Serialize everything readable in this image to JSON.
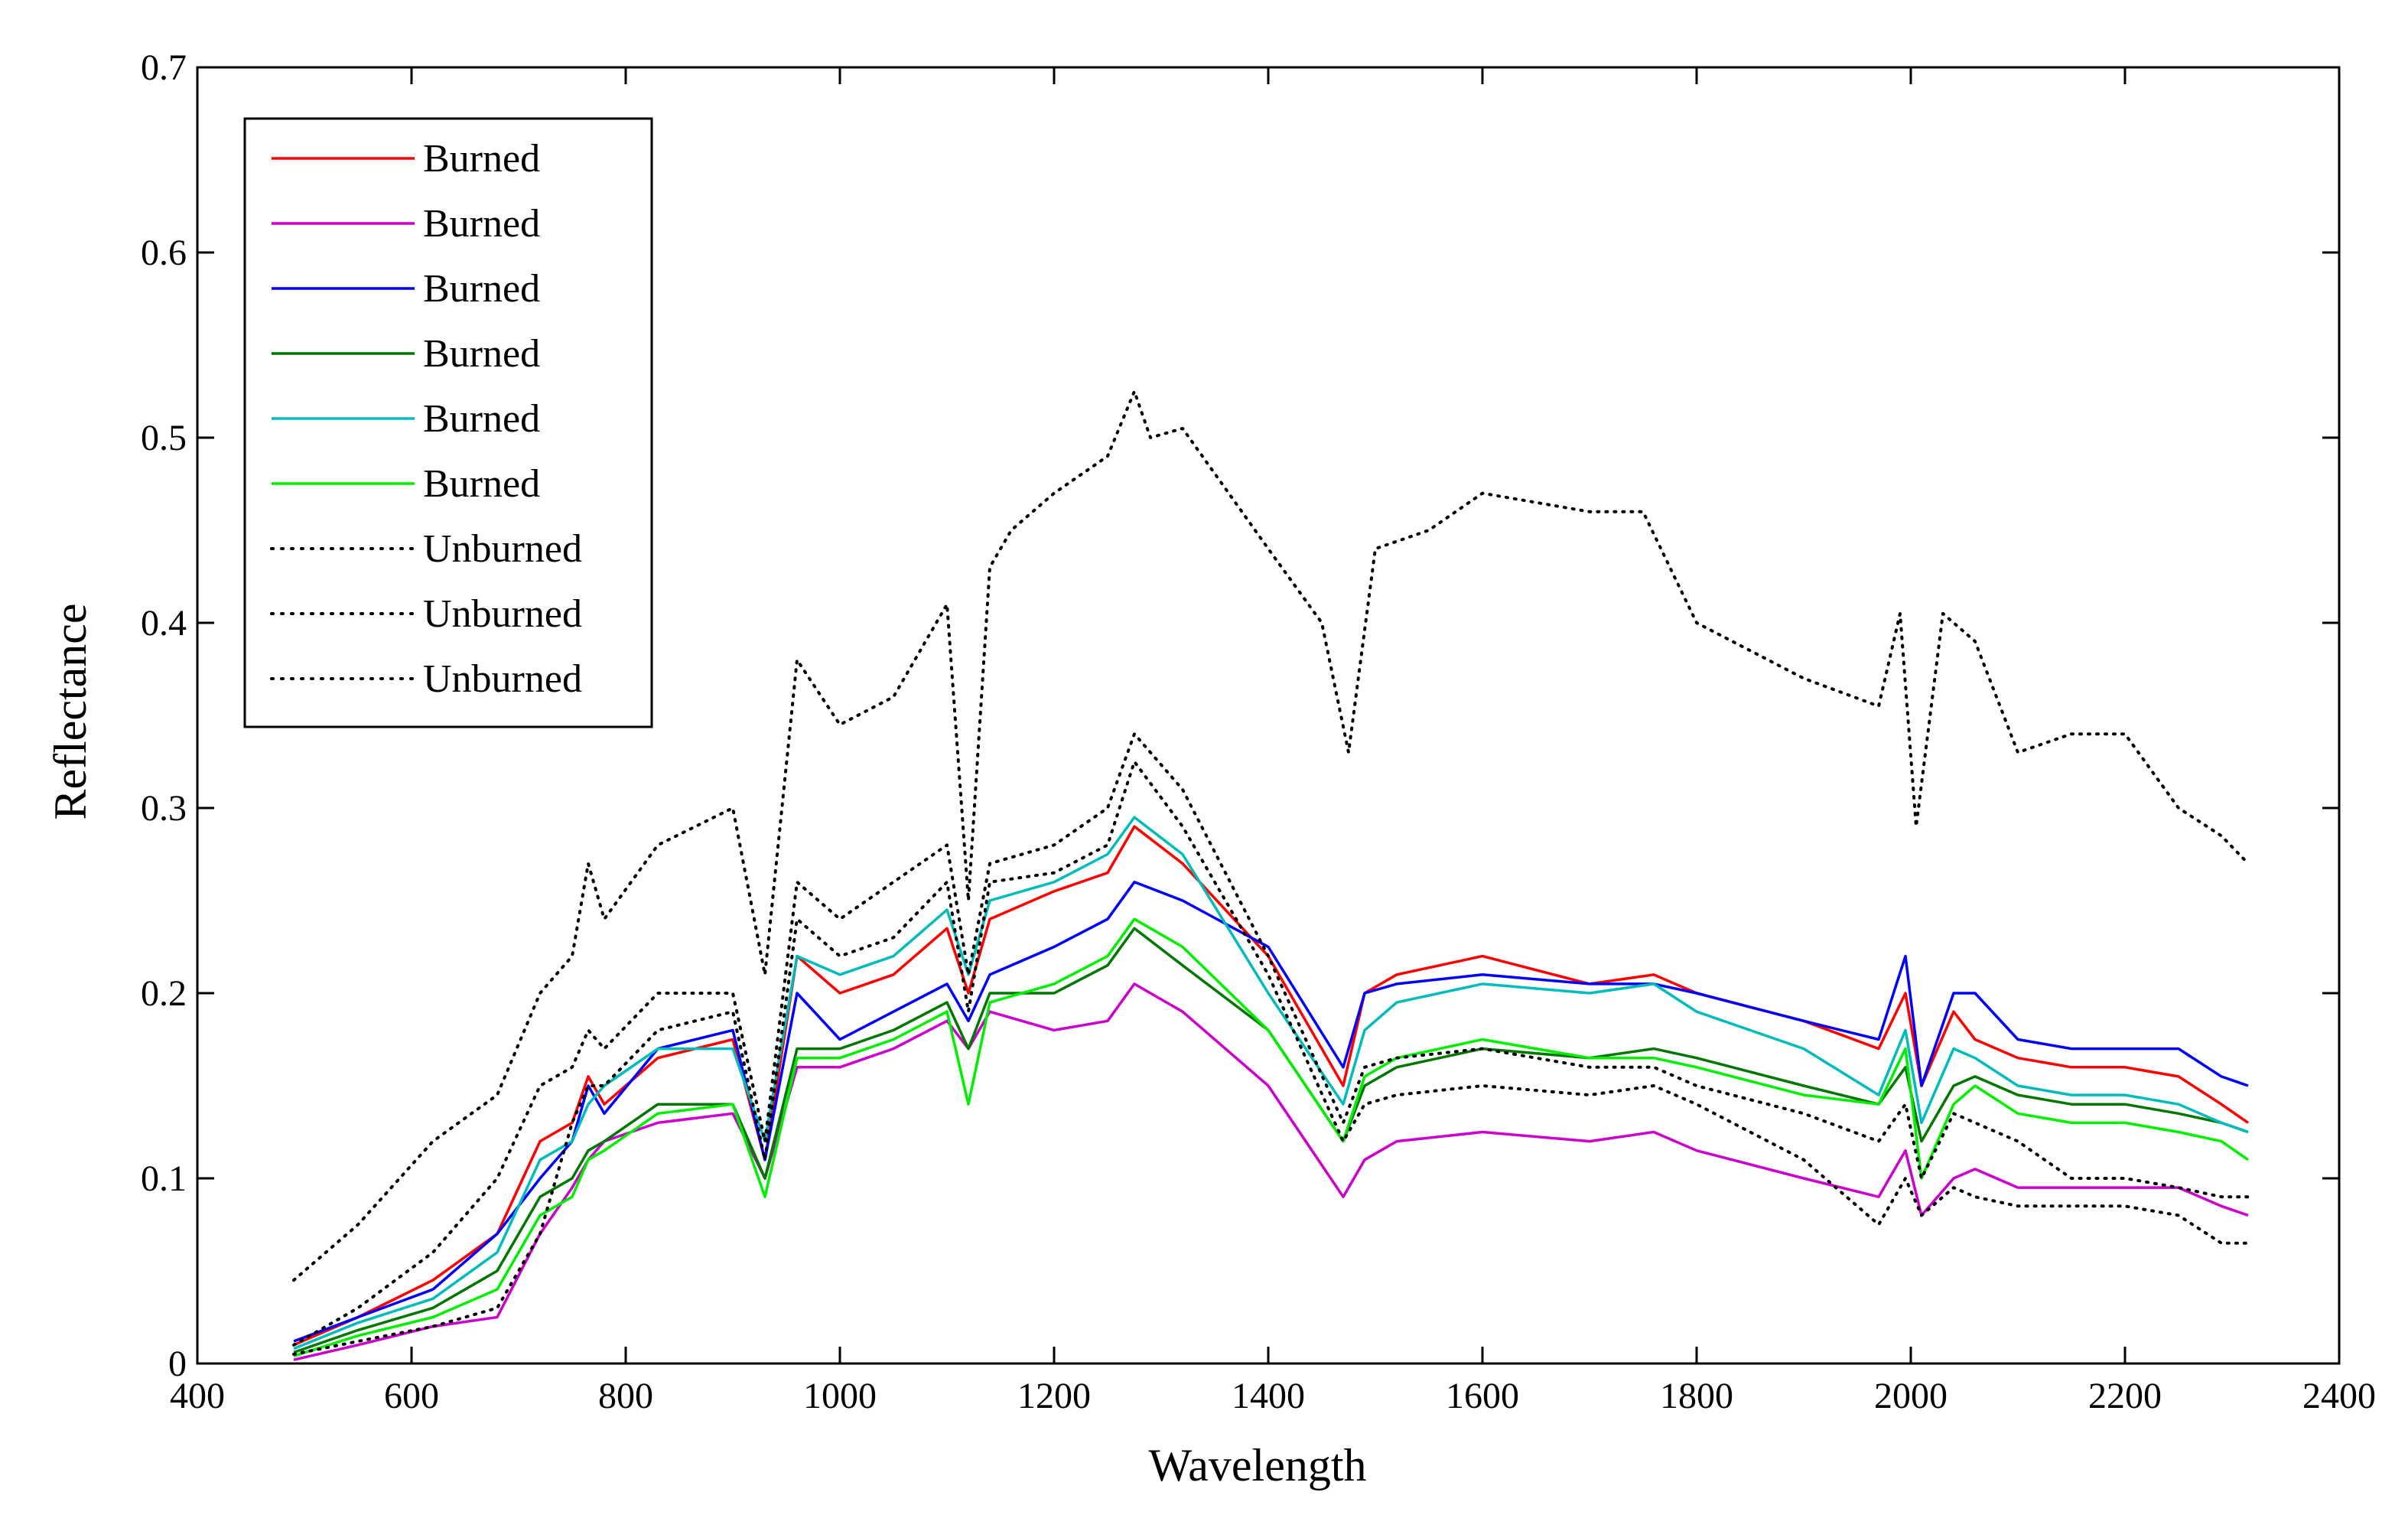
{
  "chart_data": {
    "type": "line",
    "title": "",
    "xlabel": "Wavelength",
    "ylabel": "Reflectance",
    "xlim": [
      400,
      2400
    ],
    "ylim": [
      0,
      0.7
    ],
    "grid": false,
    "legend_position": "top-left",
    "x_ticks": [
      "400",
      "600",
      "800",
      "1000",
      "1200",
      "1400",
      "1600",
      "1800",
      "2000",
      "2200",
      "2400"
    ],
    "y_ticks": [
      "0",
      "0.1",
      "0.2",
      "0.3",
      "0.4",
      "0.5",
      "0.6",
      "0.7"
    ],
    "series": [
      {
        "name": "Burned",
        "color": "#ff0000",
        "style": "solid",
        "x": [
          490,
          550,
          620,
          680,
          720,
          750,
          765,
          780,
          830,
          900,
          930,
          960,
          1000,
          1050,
          1100,
          1120,
          1140,
          1200,
          1250,
          1275,
          1320,
          1400,
          1470,
          1490,
          1520,
          1600,
          1700,
          1760,
          1800,
          1900,
          1970,
          1995,
          2010,
          2040,
          2060,
          2100,
          2150,
          2200,
          2250,
          2290,
          2315
        ],
        "y": [
          0.01,
          0.025,
          0.045,
          0.07,
          0.12,
          0.13,
          0.155,
          0.14,
          0.165,
          0.175,
          0.11,
          0.22,
          0.2,
          0.21,
          0.235,
          0.2,
          0.24,
          0.255,
          0.265,
          0.29,
          0.27,
          0.22,
          0.15,
          0.2,
          0.21,
          0.22,
          0.205,
          0.21,
          0.2,
          0.185,
          0.17,
          0.2,
          0.15,
          0.19,
          0.175,
          0.165,
          0.16,
          0.16,
          0.155,
          0.14,
          0.13
        ]
      },
      {
        "name": "Burned",
        "color": "#cc00cc",
        "style": "solid",
        "x": [
          490,
          550,
          620,
          680,
          720,
          750,
          765,
          780,
          830,
          900,
          930,
          960,
          1000,
          1050,
          1100,
          1120,
          1140,
          1200,
          1250,
          1275,
          1320,
          1400,
          1470,
          1490,
          1520,
          1600,
          1700,
          1760,
          1800,
          1900,
          1970,
          1995,
          2010,
          2040,
          2060,
          2100,
          2150,
          2200,
          2250,
          2290,
          2315
        ],
        "y": [
          0.002,
          0.01,
          0.02,
          0.025,
          0.07,
          0.095,
          0.11,
          0.12,
          0.13,
          0.135,
          0.1,
          0.16,
          0.16,
          0.17,
          0.185,
          0.17,
          0.19,
          0.18,
          0.185,
          0.205,
          0.19,
          0.15,
          0.09,
          0.11,
          0.12,
          0.125,
          0.12,
          0.125,
          0.115,
          0.1,
          0.09,
          0.115,
          0.08,
          0.1,
          0.105,
          0.095,
          0.095,
          0.095,
          0.095,
          0.085,
          0.08
        ]
      },
      {
        "name": "Burned",
        "color": "#0000ff",
        "style": "solid",
        "x": [
          490,
          550,
          620,
          680,
          720,
          750,
          765,
          780,
          830,
          900,
          930,
          960,
          1000,
          1050,
          1100,
          1120,
          1140,
          1200,
          1250,
          1275,
          1320,
          1400,
          1470,
          1490,
          1520,
          1600,
          1700,
          1760,
          1800,
          1900,
          1970,
          1995,
          2010,
          2040,
          2060,
          2100,
          2150,
          2200,
          2250,
          2290,
          2315
        ],
        "y": [
          0.012,
          0.025,
          0.04,
          0.07,
          0.1,
          0.12,
          0.15,
          0.135,
          0.17,
          0.18,
          0.11,
          0.2,
          0.175,
          0.19,
          0.205,
          0.185,
          0.21,
          0.225,
          0.24,
          0.26,
          0.25,
          0.225,
          0.16,
          0.2,
          0.205,
          0.21,
          0.205,
          0.205,
          0.2,
          0.185,
          0.175,
          0.22,
          0.15,
          0.2,
          0.2,
          0.175,
          0.17,
          0.17,
          0.17,
          0.155,
          0.15
        ]
      },
      {
        "name": "Burned",
        "color": "#007700",
        "style": "solid",
        "x": [
          490,
          550,
          620,
          680,
          720,
          750,
          765,
          780,
          830,
          900,
          930,
          960,
          1000,
          1050,
          1100,
          1120,
          1140,
          1200,
          1250,
          1275,
          1320,
          1400,
          1470,
          1490,
          1520,
          1600,
          1700,
          1760,
          1800,
          1900,
          1970,
          1995,
          2010,
          2040,
          2060,
          2100,
          2150,
          2200,
          2250,
          2290,
          2315
        ],
        "y": [
          0.006,
          0.018,
          0.03,
          0.05,
          0.09,
          0.1,
          0.115,
          0.12,
          0.14,
          0.14,
          0.1,
          0.17,
          0.17,
          0.18,
          0.195,
          0.17,
          0.2,
          0.2,
          0.215,
          0.235,
          0.215,
          0.18,
          0.12,
          0.15,
          0.16,
          0.17,
          0.165,
          0.17,
          0.165,
          0.15,
          0.14,
          0.16,
          0.12,
          0.15,
          0.155,
          0.145,
          0.14,
          0.14,
          0.135,
          0.13,
          0.125
        ]
      },
      {
        "name": "Burned",
        "color": "#00bbbb",
        "style": "solid",
        "x": [
          490,
          550,
          620,
          680,
          720,
          750,
          765,
          780,
          830,
          900,
          930,
          960,
          1000,
          1050,
          1100,
          1120,
          1140,
          1200,
          1250,
          1275,
          1320,
          1400,
          1470,
          1490,
          1520,
          1600,
          1700,
          1760,
          1800,
          1900,
          1970,
          1995,
          2010,
          2040,
          2060,
          2100,
          2150,
          2200,
          2250,
          2290,
          2315
        ],
        "y": [
          0.008,
          0.022,
          0.035,
          0.06,
          0.11,
          0.12,
          0.14,
          0.15,
          0.17,
          0.17,
          0.12,
          0.22,
          0.21,
          0.22,
          0.245,
          0.21,
          0.25,
          0.26,
          0.275,
          0.295,
          0.275,
          0.2,
          0.14,
          0.18,
          0.195,
          0.205,
          0.2,
          0.205,
          0.19,
          0.17,
          0.145,
          0.18,
          0.13,
          0.17,
          0.165,
          0.15,
          0.145,
          0.145,
          0.14,
          0.13,
          0.125
        ]
      },
      {
        "name": "Burned",
        "color": "#00ee00",
        "style": "solid",
        "x": [
          490,
          550,
          620,
          680,
          720,
          750,
          765,
          780,
          830,
          900,
          930,
          960,
          1000,
          1050,
          1100,
          1120,
          1140,
          1200,
          1250,
          1275,
          1320,
          1400,
          1470,
          1490,
          1520,
          1600,
          1700,
          1760,
          1800,
          1900,
          1970,
          1995,
          2010,
          2040,
          2060,
          2100,
          2150,
          2200,
          2250,
          2290,
          2315
        ],
        "y": [
          0.004,
          0.015,
          0.025,
          0.04,
          0.08,
          0.09,
          0.11,
          0.115,
          0.135,
          0.14,
          0.09,
          0.165,
          0.165,
          0.175,
          0.19,
          0.14,
          0.195,
          0.205,
          0.22,
          0.24,
          0.225,
          0.18,
          0.12,
          0.155,
          0.165,
          0.175,
          0.165,
          0.165,
          0.16,
          0.145,
          0.14,
          0.17,
          0.1,
          0.14,
          0.15,
          0.135,
          0.13,
          0.13,
          0.125,
          0.12,
          0.11
        ]
      },
      {
        "name": "Unburned",
        "color": "#000000",
        "style": "dotted",
        "x": [
          490,
          550,
          620,
          680,
          720,
          750,
          765,
          780,
          830,
          900,
          930,
          960,
          1000,
          1050,
          1100,
          1120,
          1140,
          1160,
          1200,
          1250,
          1275,
          1290,
          1320,
          1400,
          1450,
          1475,
          1500,
          1550,
          1600,
          1700,
          1750,
          1800,
          1900,
          1970,
          1990,
          2005,
          2030,
          2060,
          2100,
          2150,
          2200,
          2250,
          2290,
          2315
        ],
        "y": [
          0.045,
          0.075,
          0.12,
          0.145,
          0.2,
          0.22,
          0.27,
          0.24,
          0.28,
          0.3,
          0.21,
          0.38,
          0.345,
          0.36,
          0.41,
          0.25,
          0.43,
          0.45,
          0.47,
          0.49,
          0.525,
          0.5,
          0.505,
          0.44,
          0.4,
          0.33,
          0.44,
          0.45,
          0.47,
          0.46,
          0.46,
          0.4,
          0.37,
          0.355,
          0.405,
          0.29,
          0.405,
          0.39,
          0.33,
          0.34,
          0.34,
          0.3,
          0.285,
          0.27
        ]
      },
      {
        "name": "Unburned",
        "color": "#000000",
        "style": "dotted",
        "x": [
          490,
          550,
          620,
          680,
          720,
          750,
          765,
          780,
          830,
          900,
          930,
          960,
          1000,
          1050,
          1100,
          1120,
          1140,
          1200,
          1250,
          1275,
          1320,
          1400,
          1470,
          1490,
          1520,
          1600,
          1700,
          1760,
          1800,
          1900,
          1970,
          1995,
          2010,
          2040,
          2060,
          2100,
          2150,
          2200,
          2250,
          2290,
          2315
        ],
        "y": [
          0.01,
          0.03,
          0.06,
          0.1,
          0.15,
          0.16,
          0.18,
          0.17,
          0.2,
          0.2,
          0.12,
          0.26,
          0.24,
          0.26,
          0.28,
          0.21,
          0.27,
          0.28,
          0.3,
          0.34,
          0.31,
          0.22,
          0.13,
          0.16,
          0.165,
          0.17,
          0.16,
          0.16,
          0.15,
          0.135,
          0.12,
          0.14,
          0.1,
          0.135,
          0.13,
          0.12,
          0.1,
          0.1,
          0.095,
          0.09,
          0.09
        ]
      },
      {
        "name": "Unburned",
        "color": "#000000",
        "style": "dotted",
        "x": [
          490,
          550,
          620,
          680,
          720,
          750,
          765,
          780,
          830,
          900,
          930,
          960,
          1000,
          1050,
          1100,
          1120,
          1140,
          1200,
          1250,
          1275,
          1320,
          1400,
          1470,
          1490,
          1520,
          1600,
          1700,
          1760,
          1800,
          1900,
          1970,
          1995,
          2010,
          2040,
          2060,
          2100,
          2150,
          2200,
          2250,
          2290,
          2315
        ],
        "y": [
          0.005,
          0.012,
          0.02,
          0.03,
          0.07,
          0.13,
          0.15,
          0.15,
          0.18,
          0.19,
          0.11,
          0.24,
          0.22,
          0.23,
          0.26,
          0.19,
          0.26,
          0.265,
          0.28,
          0.325,
          0.29,
          0.21,
          0.12,
          0.14,
          0.145,
          0.15,
          0.145,
          0.15,
          0.14,
          0.11,
          0.075,
          0.1,
          0.08,
          0.095,
          0.09,
          0.085,
          0.085,
          0.085,
          0.08,
          0.065,
          0.065
        ]
      }
    ]
  }
}
